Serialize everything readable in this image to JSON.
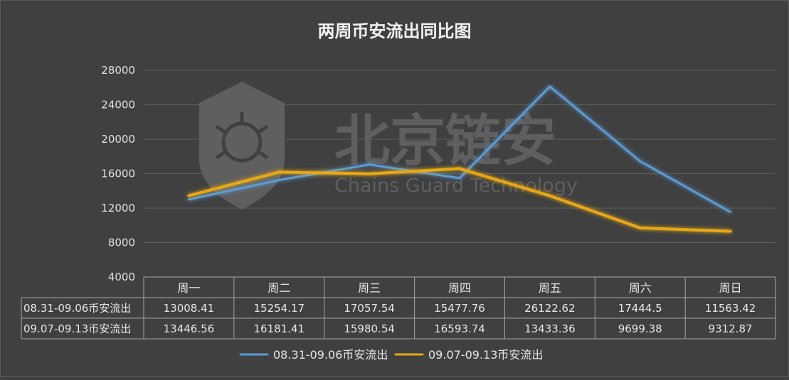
{
  "chart_data": {
    "type": "line",
    "title": "两周币安流出同比图",
    "categories": [
      "周一",
      "周二",
      "周三",
      "周四",
      "周五",
      "周六",
      "周日"
    ],
    "series": [
      {
        "name": "08.31-09.06币安流出",
        "color": "#5b9bd5",
        "values": [
          13008.41,
          15254.17,
          17057.54,
          15477.76,
          26122.62,
          17444.5,
          11563.42
        ]
      },
      {
        "name": "09.07-09.13币安流出",
        "color": "#e6a817",
        "values": [
          13446.56,
          16181.41,
          15980.54,
          16593.74,
          13433.36,
          9699.38,
          9312.87
        ]
      }
    ],
    "ylim": [
      4000,
      28000
    ],
    "yticks": [
      4000,
      8000,
      12000,
      16000,
      20000,
      24000,
      28000
    ],
    "grid": true,
    "data_table": true,
    "legend": "bottom"
  },
  "watermark": {
    "cn": "北京链安",
    "en": "Chains Guard Technology"
  }
}
